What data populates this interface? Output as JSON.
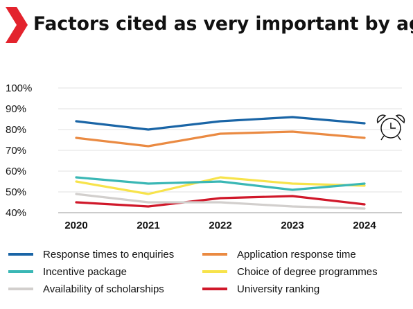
{
  "title": "Factors cited as very important by agents",
  "colors": {
    "brand_accent": "#e3232d"
  },
  "icon": "alarm-clock-icon",
  "chart_data": {
    "type": "line",
    "title": "Factors cited as very important by agents",
    "x": [
      2020,
      2021,
      2022,
      2023,
      2024
    ],
    "x_tick_labels": [
      "2020",
      "2021",
      "2022",
      "2023",
      "2024"
    ],
    "ylim": [
      40,
      100
    ],
    "y_ticks": [
      40,
      50,
      60,
      70,
      80,
      90,
      100
    ],
    "y_tick_labels": [
      "40%",
      "50%",
      "60%",
      "70%",
      "80%",
      "90%",
      "100%"
    ],
    "grid": true,
    "legend_position": "bottom",
    "series": [
      {
        "name": "Response times to enquiries",
        "color": "#1a65a6",
        "values": [
          84,
          80,
          84,
          86,
          83
        ]
      },
      {
        "name": "Application response time",
        "color": "#ea8a42",
        "values": [
          76,
          72,
          78,
          79,
          76
        ]
      },
      {
        "name": "Incentive package",
        "color": "#3ab7b5",
        "values": [
          57,
          54,
          55,
          51,
          54
        ]
      },
      {
        "name": "Choice of degree programmes",
        "color": "#f7e34b",
        "values": [
          55,
          49,
          57,
          54,
          53
        ]
      },
      {
        "name": "Availability of scholarships",
        "color": "#d2cfcd",
        "values": [
          49,
          45,
          45,
          43,
          42
        ]
      },
      {
        "name": "University ranking",
        "color": "#d0182a",
        "values": [
          45,
          43,
          47,
          48,
          44
        ]
      }
    ]
  }
}
